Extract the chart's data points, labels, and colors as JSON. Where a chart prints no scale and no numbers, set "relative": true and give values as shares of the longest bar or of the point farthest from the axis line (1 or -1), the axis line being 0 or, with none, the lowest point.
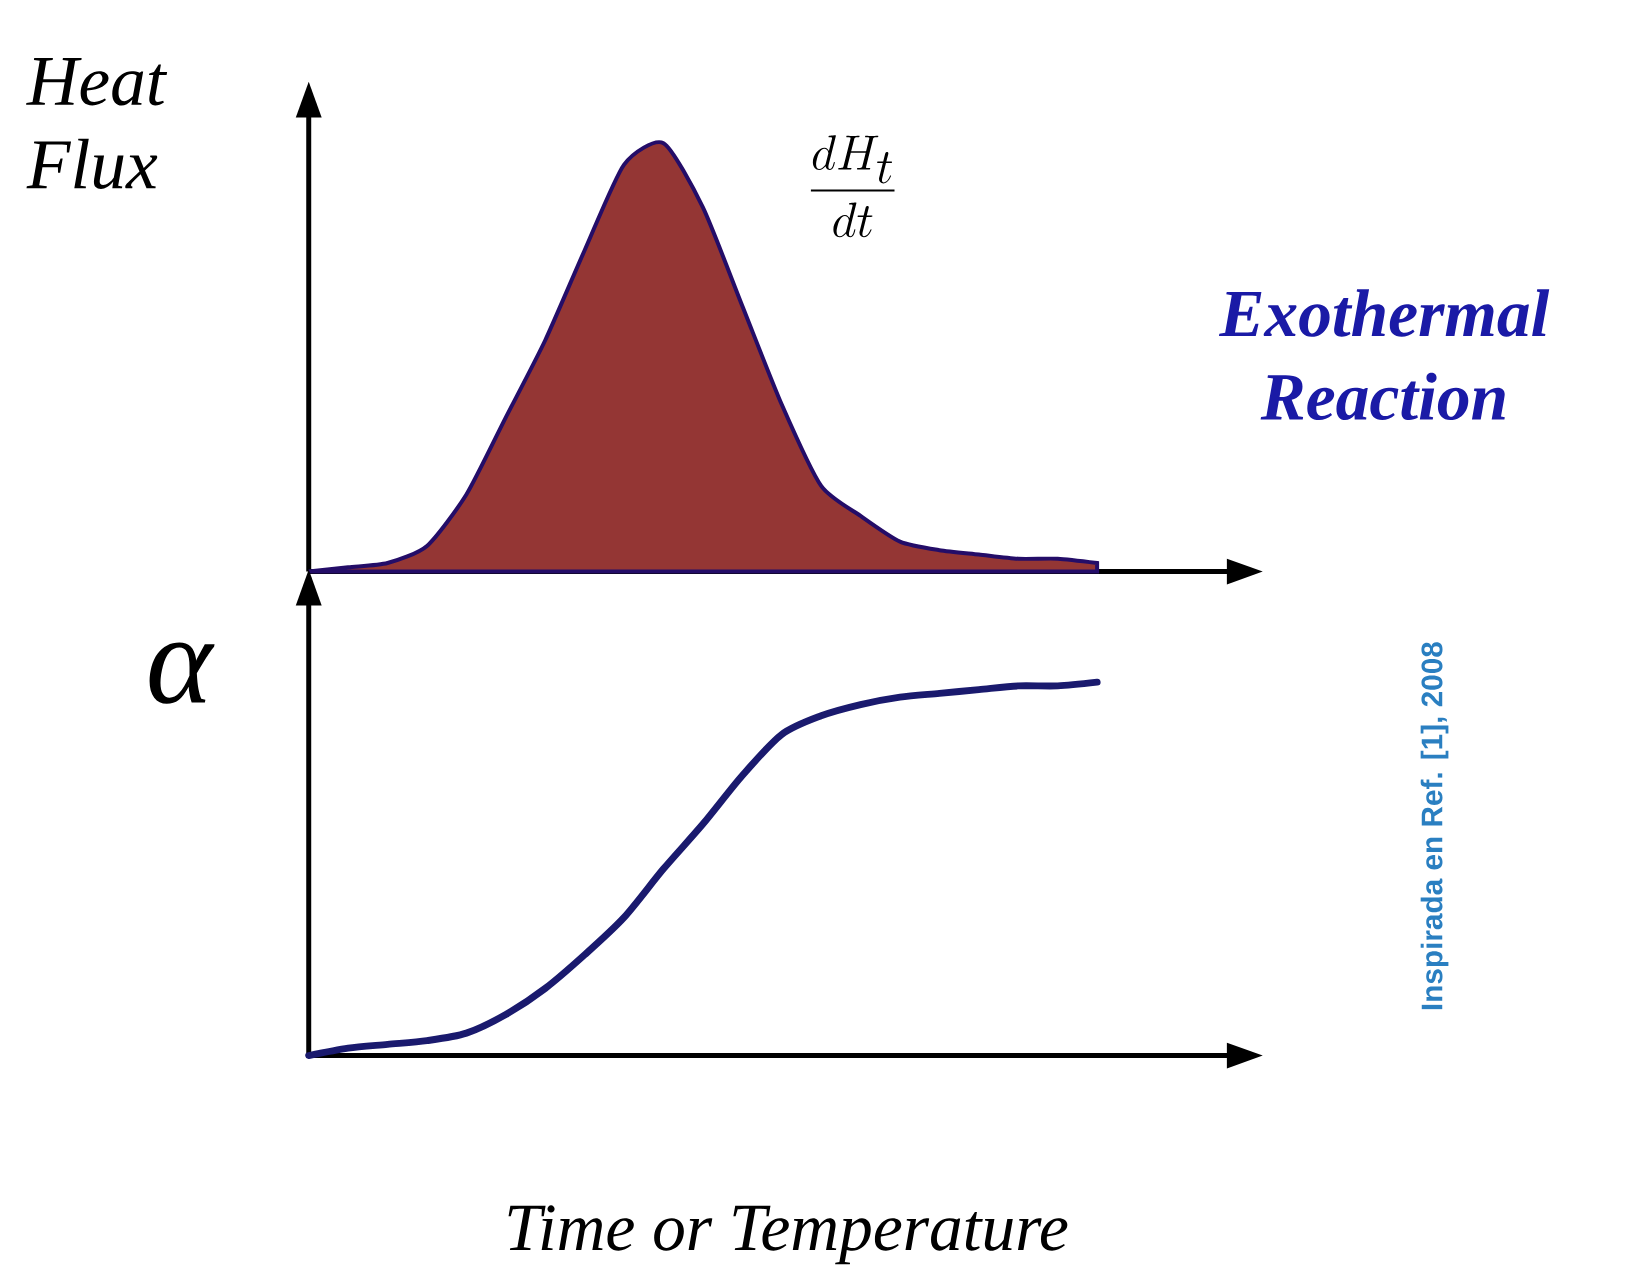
{
  "chart_data": [
    {
      "type": "area",
      "relative": true,
      "ylabel": "Heat Flux",
      "annotations": [
        "\\frac{dH_t}{dt}",
        "Exothermal Reaction"
      ],
      "categories": [
        null,
        null,
        null,
        null,
        null,
        null,
        null,
        null,
        null,
        null,
        null,
        null,
        null,
        null,
        null,
        null,
        null,
        null,
        null,
        null,
        null
      ],
      "series": [
        {
          "color": "#943634",
          "values": [
            0,
            0.01,
            0.02,
            0.06,
            0.18,
            0.36,
            0.54,
            0.75,
            0.95,
            1.0,
            0.85,
            0.62,
            0.39,
            0.2,
            0.13,
            0.07,
            0.05,
            0.04,
            0.03,
            0.03,
            0.02
          ]
        }
      ]
    },
    {
      "type": "line",
      "relative": true,
      "ylabel": "α",
      "xlabel": "Time or Temperature",
      "annotations": [
        "Inspirada en Ref. [1], 2008"
      ],
      "categories": [
        null,
        null,
        null,
        null,
        null,
        null,
        null,
        null,
        null,
        null,
        null,
        null,
        null,
        null,
        null,
        null,
        null,
        null,
        null,
        null,
        null
      ],
      "series": [
        {
          "color": "#1a1a6e",
          "values": [
            0,
            0.02,
            0.03,
            0.04,
            0.06,
            0.11,
            0.18,
            0.27,
            0.37,
            0.5,
            0.62,
            0.75,
            0.86,
            0.91,
            0.94,
            0.96,
            0.97,
            0.98,
            0.99,
            0.99,
            1.0
          ]
        }
      ]
    }
  ]
}
